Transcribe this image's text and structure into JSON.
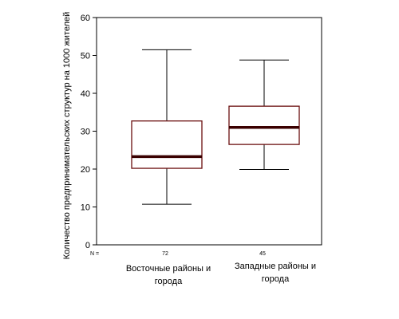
{
  "chart_data": {
    "type": "boxplot",
    "ylabel": "Количество предпринимательских структур на 1000 жителей",
    "ylim": [
      0,
      60
    ],
    "yticks": [
      "0",
      "10",
      "20",
      "30",
      "40",
      "50",
      "60"
    ],
    "n_label": "N =",
    "grid": false,
    "legend": "none",
    "colors": {
      "box_edge": "#6b0f0f",
      "median": "#3a0000",
      "whisker": "#000000"
    },
    "groups": [
      {
        "label_lines": [
          "Восточные районы и",
          "города"
        ],
        "n": "72",
        "min": 10.7,
        "q1": 20.2,
        "median": 23.3,
        "q3": 32.7,
        "max": 51.5
      },
      {
        "label_lines": [
          "Западные районы и",
          "города"
        ],
        "n": "45",
        "min": 19.9,
        "q1": 26.5,
        "median": 31.0,
        "q3": 36.6,
        "max": 48.8
      }
    ]
  }
}
